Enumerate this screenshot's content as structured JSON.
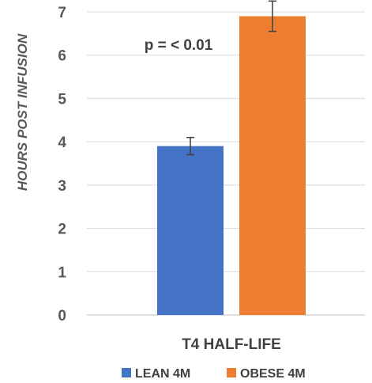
{
  "chart_data": {
    "type": "bar",
    "categories": [
      "T4 HALF-LIFE"
    ],
    "series": [
      {
        "name": "LEAN 4M",
        "values": [
          3.9
        ],
        "error": [
          0.2
        ],
        "color": "#4472C4"
      },
      {
        "name": "OBESE 4M",
        "values": [
          6.9
        ],
        "error": [
          0.35
        ],
        "color": "#ED7D31"
      }
    ],
    "title": "",
    "xlabel": "",
    "ylabel": "HOURS POST INFUSION",
    "ylim": [
      0,
      7
    ],
    "yticks": [
      0,
      1,
      2,
      3,
      4,
      5,
      6,
      7
    ],
    "annotation": "p = < 0.01",
    "grid": true,
    "legend_position": "bottom"
  }
}
